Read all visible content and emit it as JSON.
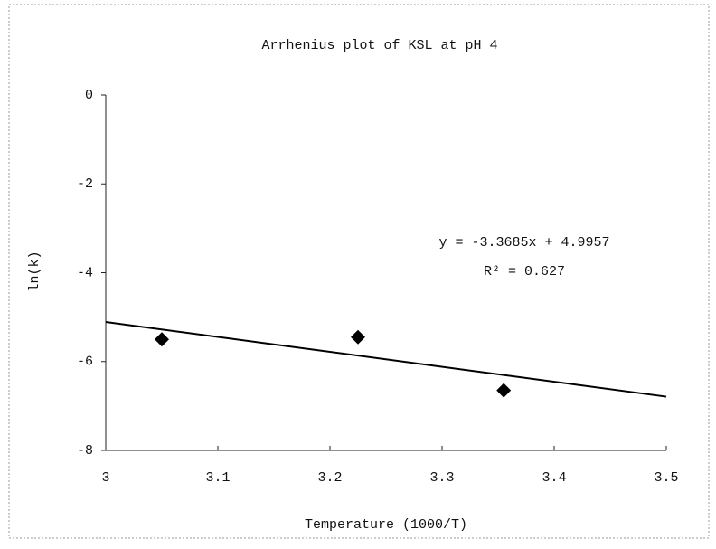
{
  "chart_data": {
    "type": "scatter",
    "title": "Arrhenius plot of KSL at pH 4",
    "x_label": "Temperature (1000/T)",
    "y_label": "ln(k)",
    "annotations": [
      "y = -3.3685x + 4.9957",
      "R² = 0.627"
    ],
    "series": [
      {
        "name": "ln(k)",
        "color": "#000000",
        "x": [
          3.05,
          3.225,
          3.355
        ],
        "values": [
          -5.5,
          -5.45,
          -6.65
        ]
      }
    ],
    "trendline": {
      "color": "#000000",
      "x": [
        3,
        3.5
      ],
      "values": [
        -5.11,
        -6.79
      ]
    },
    "xlim": [
      3,
      3.5
    ],
    "xticks": [
      3,
      3.1,
      3.2,
      3.3,
      3.4,
      3.5
    ],
    "ylim": [
      -8,
      0
    ],
    "yticks": [
      -8,
      -6,
      -4,
      -2,
      0
    ],
    "grid": false
  }
}
